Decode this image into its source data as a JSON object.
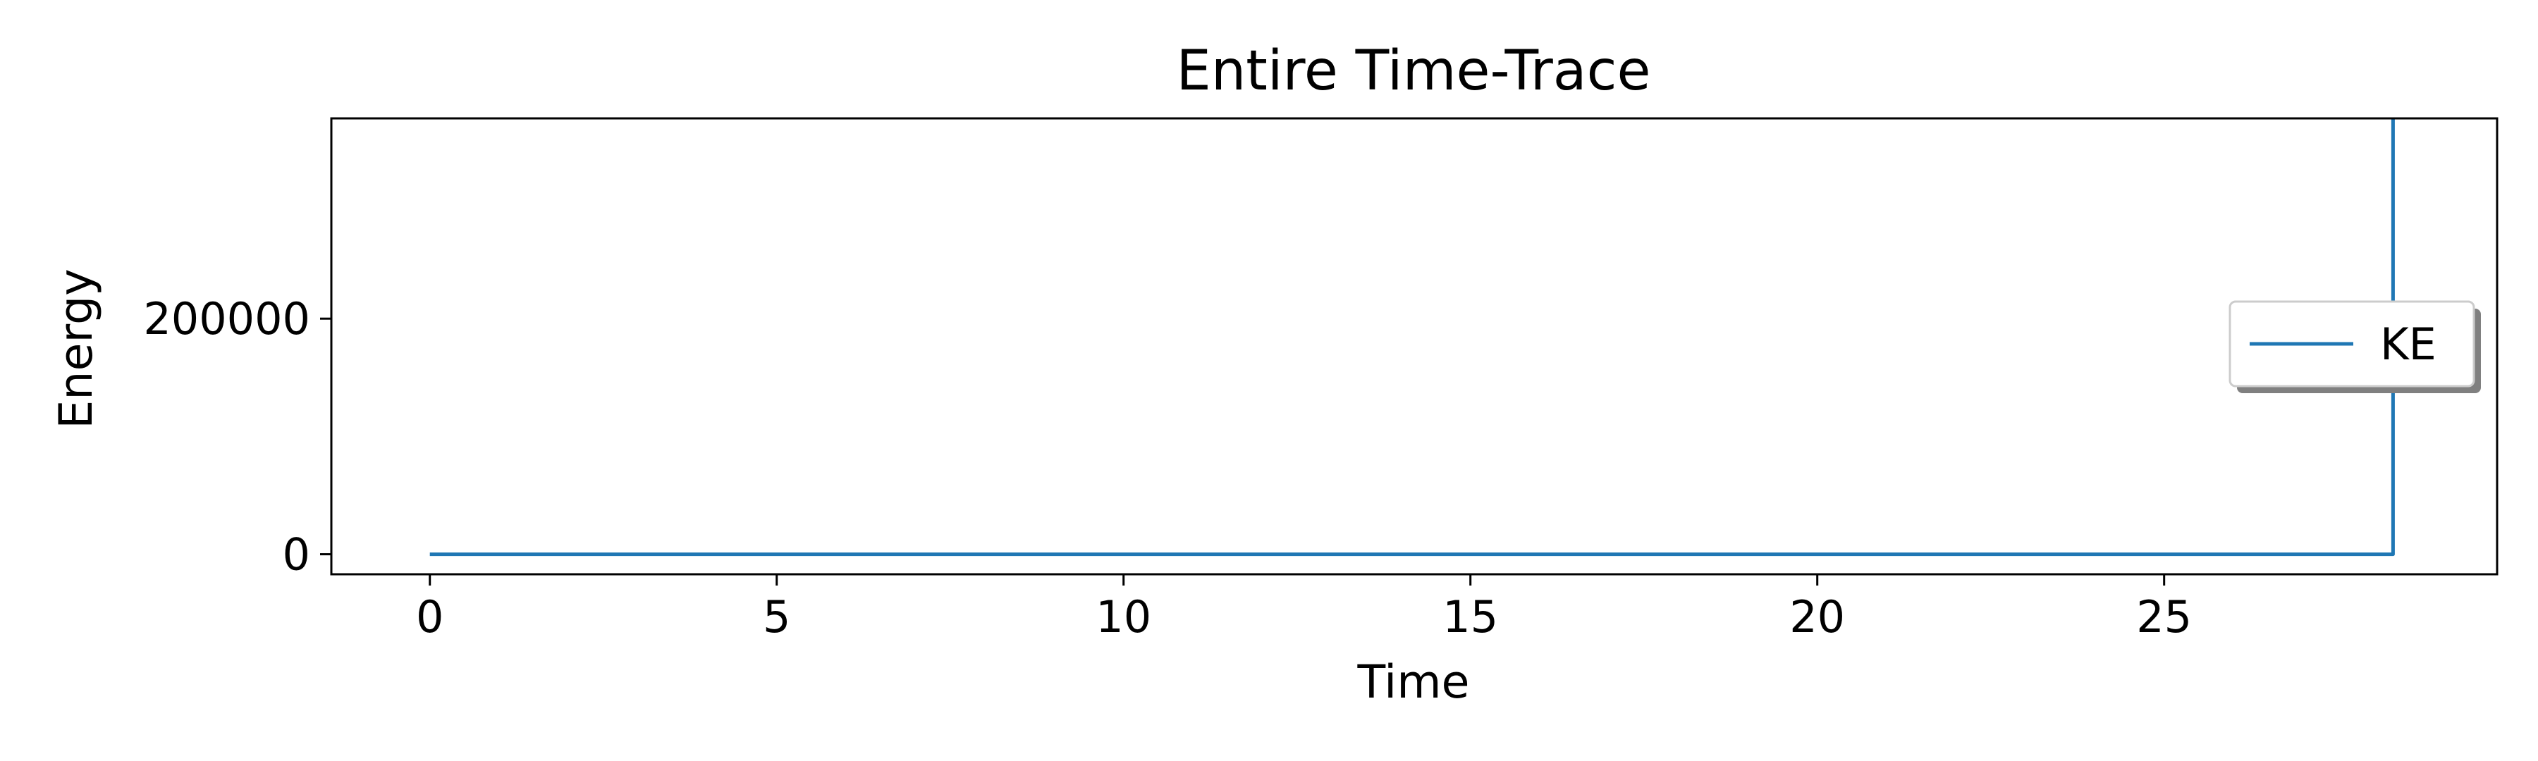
{
  "chart_data": {
    "type": "line",
    "title": "Entire Time-Trace",
    "xlabel": "Time",
    "ylabel": "Energy",
    "xlim": [
      -1.42,
      29.8
    ],
    "ylim": [
      -17000,
      370000
    ],
    "xticks": [
      0,
      5,
      10,
      15,
      20,
      25
    ],
    "xtick_labels": [
      "0",
      "5",
      "10",
      "15",
      "20",
      "25"
    ],
    "yticks": [
      0,
      200000
    ],
    "ytick_labels": [
      "0",
      "200000"
    ],
    "grid": false,
    "legend": {
      "location": "center-right",
      "shadow": true
    },
    "series": [
      {
        "name": "KE",
        "color": "#1f77b4",
        "x": [
          0,
          5,
          10,
          15,
          20,
          25,
          28.3,
          28.3
        ],
        "y": [
          0,
          0,
          0,
          0,
          0,
          0,
          0,
          370000
        ]
      }
    ]
  }
}
